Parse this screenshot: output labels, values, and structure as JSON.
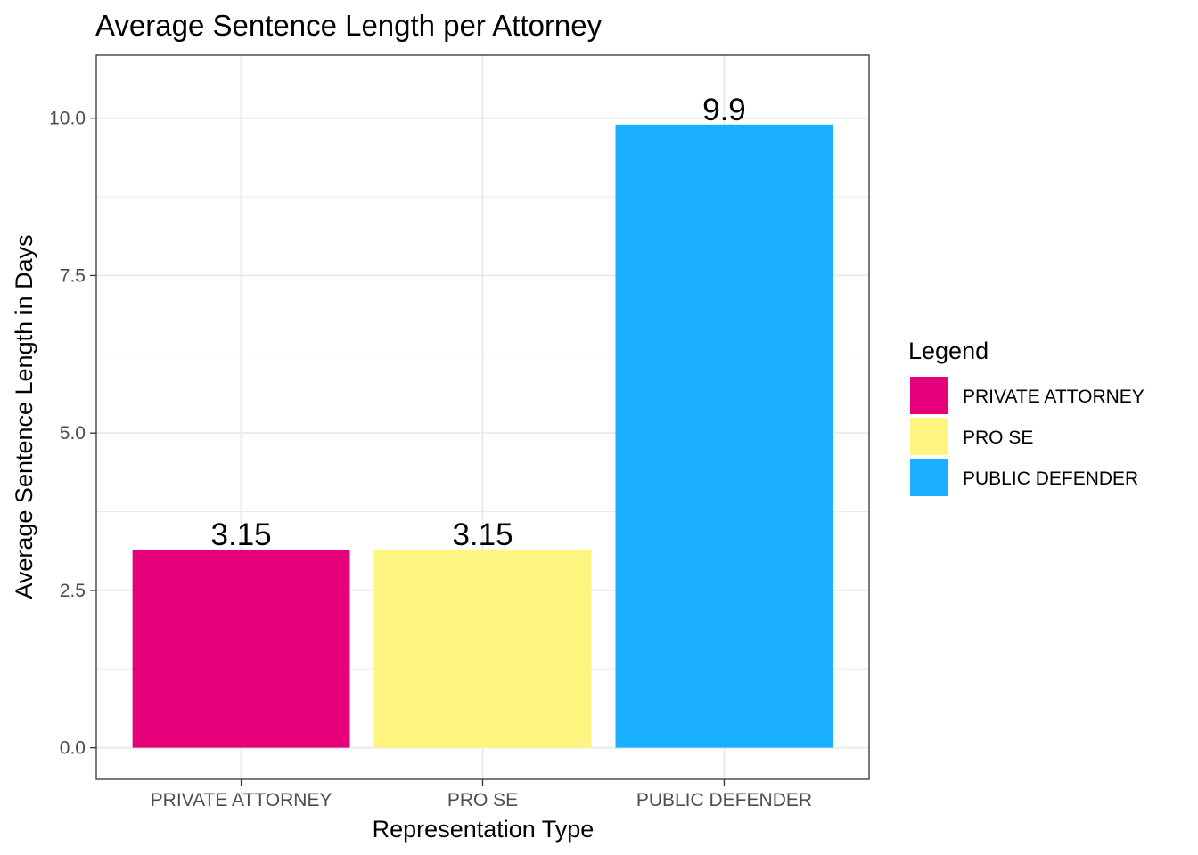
{
  "chart_data": {
    "type": "bar",
    "title": "Average Sentence Length per Attorney",
    "xlabel": "Representation Type",
    "ylabel": "Average Sentence Length in Days",
    "categories": [
      "PRIVATE ATTORNEY",
      "PRO SE",
      "PUBLIC DEFENDER"
    ],
    "values": [
      3.15,
      3.15,
      9.9
    ],
    "data_labels": [
      "3.15",
      "3.15",
      "9.9"
    ],
    "colors": [
      "#E6007A",
      "#FDF57F",
      "#1AAFFF"
    ],
    "ylim": [
      -0.5,
      11
    ],
    "yticks": [
      0,
      2.5,
      5,
      7.5,
      10
    ],
    "ytick_labels": [
      "0.0",
      "2.5",
      "5.0",
      "7.5",
      "10.0"
    ],
    "grid": true,
    "legend": {
      "title": "Legend",
      "placement": "right",
      "entries": [
        "PRIVATE ATTORNEY",
        "PRO SE",
        "PUBLIC DEFENDER"
      ]
    }
  }
}
